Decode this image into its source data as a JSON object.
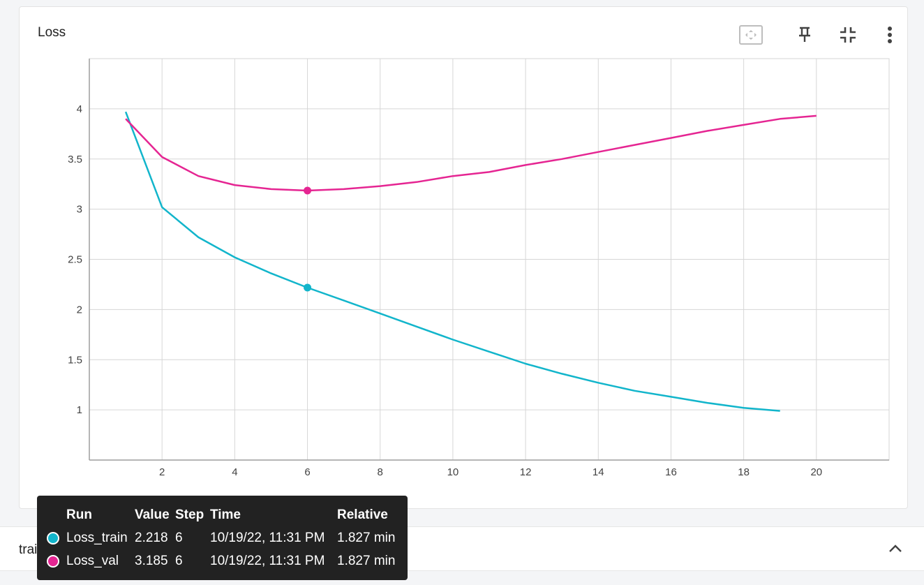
{
  "card": {
    "title": "Loss"
  },
  "toolbar": {
    "items": [
      {
        "name": "fit-domain-icon",
        "label": "fit to data"
      },
      {
        "name": "pin-icon",
        "label": "pin card"
      },
      {
        "name": "collapse-card-icon",
        "label": "collapse"
      },
      {
        "name": "more-vert-icon",
        "label": "more options"
      }
    ]
  },
  "chart_data": {
    "type": "line",
    "title": "Loss",
    "xlabel": "",
    "ylabel": "",
    "x_ticks": [
      2,
      4,
      6,
      8,
      10,
      12,
      14,
      16,
      18,
      20
    ],
    "y_ticks": [
      1,
      1.5,
      2,
      2.5,
      3,
      3.5,
      4
    ],
    "xlim": [
      0,
      22
    ],
    "ylim": [
      0.5,
      4.5
    ],
    "grid": true,
    "series": [
      {
        "name": "Loss_train",
        "color": "#12b5cb",
        "x": [
          1,
          2,
          3,
          4,
          5,
          6,
          7,
          8,
          9,
          10,
          11,
          12,
          13,
          14,
          15,
          16,
          17,
          18,
          19
        ],
        "y": [
          3.97,
          3.02,
          2.72,
          2.52,
          2.36,
          2.218,
          2.09,
          1.96,
          1.83,
          1.7,
          1.58,
          1.46,
          1.36,
          1.27,
          1.19,
          1.13,
          1.07,
          1.02,
          0.99
        ]
      },
      {
        "name": "Loss_val",
        "color": "#e52592",
        "x": [
          1,
          2,
          3,
          4,
          5,
          6,
          7,
          8,
          9,
          10,
          11,
          12,
          13,
          14,
          15,
          16,
          17,
          18,
          19,
          20
        ],
        "y": [
          3.9,
          3.52,
          3.33,
          3.24,
          3.2,
          3.185,
          3.2,
          3.23,
          3.27,
          3.33,
          3.37,
          3.44,
          3.5,
          3.57,
          3.64,
          3.71,
          3.78,
          3.84,
          3.9,
          3.93
        ]
      }
    ],
    "highlight_x": 6
  },
  "tooltip": {
    "headers": {
      "run": "Run",
      "value": "Value",
      "step": "Step",
      "time": "Time",
      "relative": "Relative"
    },
    "rows": [
      {
        "run": "Loss_train",
        "value": "2.218",
        "step": "6",
        "time": "10/19/22, 11:31 PM",
        "relative": "1.827 min",
        "color": "#12b5cb"
      },
      {
        "run": "Loss_val",
        "value": "3.185",
        "step": "6",
        "time": "10/19/22, 11:31 PM",
        "relative": "1.827 min",
        "color": "#e52592"
      }
    ]
  },
  "bottom": {
    "label": "train"
  }
}
